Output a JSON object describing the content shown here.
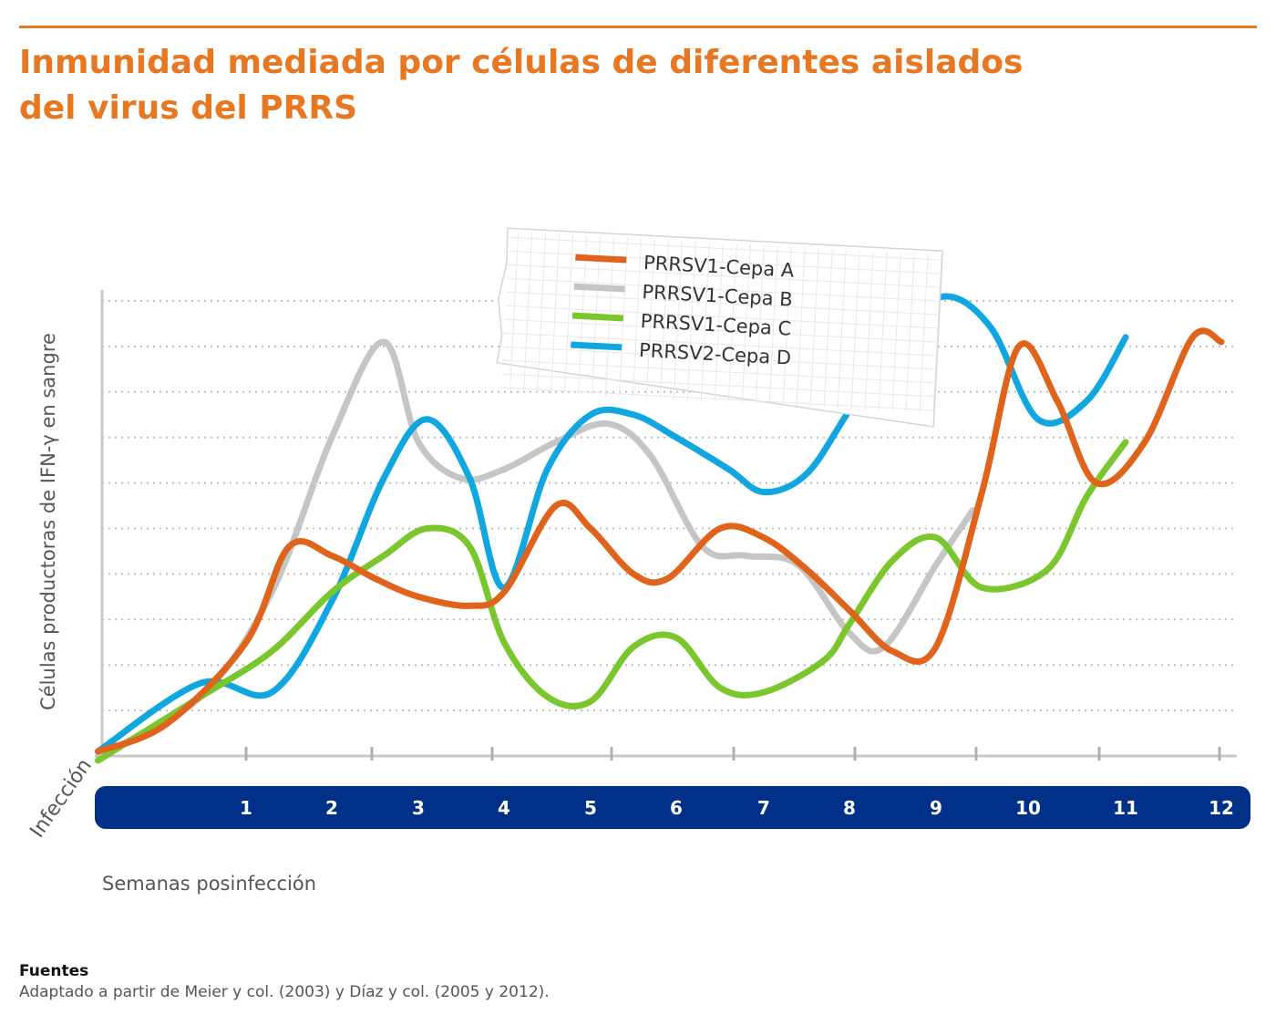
{
  "header": {
    "title_line1": "Inmunidad mediada por células de diferentes aislados",
    "title_line2": "del virus del PRRS",
    "accent_color": "#e87722"
  },
  "footer": {
    "heading": "Fuentes",
    "text": "Adaptado a partir de Meier y col. (2003) y Díaz y col. (2005 y 2012)."
  },
  "chart_data": {
    "type": "line",
    "title": "Inmunidad mediada por células de diferentes aislados del virus del PRRS",
    "xlabel": "Semanas posinfección",
    "ylabel": "Células productoras de IFN-γ en sangre",
    "x_start_label": "Infección",
    "categories": [
      "Infección",
      "1",
      "2",
      "3",
      "4",
      "5",
      "6",
      "7",
      "8",
      "9",
      "10",
      "11",
      "12"
    ],
    "xlim": [
      -0.3,
      12.2
    ],
    "ylim": [
      0,
      10
    ],
    "y_ticks_labeled": false,
    "grid": "horizontal-dotted",
    "legend_placement": "top-center",
    "axis_band_color": "#003087",
    "series": [
      {
        "name": "PRRSV1-Cepa A",
        "color": "#e0631c",
        "points": [
          [
            -0.3,
            0.1
          ],
          [
            0.3,
            0.7
          ],
          [
            1.0,
            2.5
          ],
          [
            1.5,
            4.6
          ],
          [
            2.0,
            4.4
          ],
          [
            2.5,
            3.9
          ],
          [
            3.0,
            3.5
          ],
          [
            3.6,
            3.3
          ],
          [
            4.0,
            3.6
          ],
          [
            4.6,
            5.5
          ],
          [
            5.0,
            5.0
          ],
          [
            5.5,
            4.0
          ],
          [
            5.9,
            3.9
          ],
          [
            6.5,
            5.0
          ],
          [
            7.0,
            4.8
          ],
          [
            7.5,
            4.1
          ],
          [
            8.0,
            3.2
          ],
          [
            8.5,
            2.3
          ],
          [
            9.0,
            2.4
          ],
          [
            9.5,
            5.8
          ],
          [
            9.9,
            9.0
          ],
          [
            10.3,
            7.8
          ],
          [
            10.7,
            6.0
          ],
          [
            11.2,
            6.9
          ],
          [
            11.7,
            9.2
          ],
          [
            12.0,
            9.1
          ]
        ]
      },
      {
        "name": "PRRSV1-Cepa B",
        "color": "#c4c6c6",
        "points": [
          [
            -0.3,
            0.0
          ],
          [
            0.6,
            1.3
          ],
          [
            1.3,
            3.6
          ],
          [
            2.0,
            7.0
          ],
          [
            2.6,
            9.1
          ],
          [
            3.0,
            6.9
          ],
          [
            3.5,
            6.1
          ],
          [
            4.0,
            6.3
          ],
          [
            4.6,
            6.9
          ],
          [
            5.2,
            7.3
          ],
          [
            5.7,
            6.6
          ],
          [
            6.3,
            4.6
          ],
          [
            6.8,
            4.4
          ],
          [
            7.4,
            4.2
          ],
          [
            8.0,
            2.7
          ],
          [
            8.4,
            2.4
          ],
          [
            9.0,
            4.2
          ],
          [
            9.4,
            5.4
          ]
        ]
      },
      {
        "name": "PRRSV1-Cepa C",
        "color": "#79c72c",
        "points": [
          [
            -0.3,
            -0.1
          ],
          [
            0.6,
            1.3
          ],
          [
            1.3,
            2.3
          ],
          [
            2.0,
            3.6
          ],
          [
            2.6,
            4.4
          ],
          [
            3.1,
            5.0
          ],
          [
            3.6,
            4.6
          ],
          [
            4.0,
            2.5
          ],
          [
            4.5,
            1.3
          ],
          [
            5.0,
            1.2
          ],
          [
            5.5,
            2.4
          ],
          [
            6.0,
            2.6
          ],
          [
            6.5,
            1.5
          ],
          [
            7.0,
            1.4
          ],
          [
            7.7,
            2.1
          ],
          [
            8.0,
            2.9
          ],
          [
            8.5,
            4.3
          ],
          [
            9.0,
            4.8
          ],
          [
            9.5,
            3.7
          ],
          [
            10.2,
            4.1
          ],
          [
            10.6,
            5.7
          ],
          [
            11.0,
            6.9
          ]
        ]
      },
      {
        "name": "PRRSV2-Cepa D",
        "color": "#10a7e0",
        "points": [
          [
            -0.3,
            0.1
          ],
          [
            0.6,
            1.6
          ],
          [
            1.3,
            1.4
          ],
          [
            2.0,
            3.4
          ],
          [
            2.6,
            6.1
          ],
          [
            3.1,
            7.4
          ],
          [
            3.6,
            6.1
          ],
          [
            4.0,
            3.7
          ],
          [
            4.5,
            6.3
          ],
          [
            5.0,
            7.5
          ],
          [
            5.5,
            7.5
          ],
          [
            6.0,
            7.0
          ],
          [
            6.6,
            6.3
          ],
          [
            7.0,
            5.8
          ],
          [
            7.5,
            6.2
          ],
          [
            8.0,
            7.6
          ],
          [
            8.6,
            9.3
          ],
          [
            9.1,
            10.1
          ],
          [
            9.6,
            9.4
          ],
          [
            10.1,
            7.4
          ],
          [
            10.6,
            7.8
          ],
          [
            11.0,
            9.2
          ]
        ]
      }
    ]
  }
}
